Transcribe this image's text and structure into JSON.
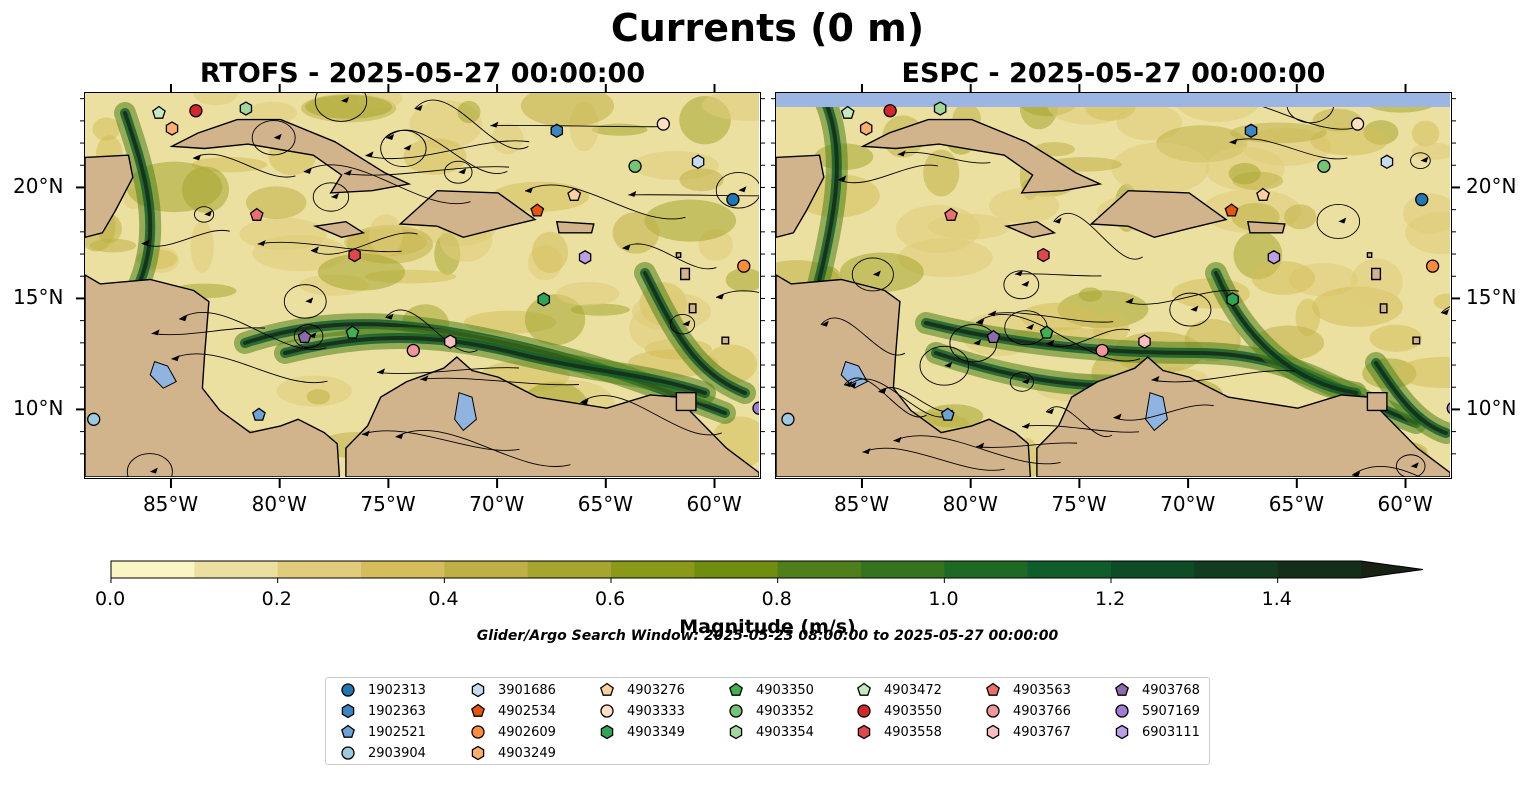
{
  "figure": {
    "suptitle": "Currents (0 m)",
    "panels": [
      {
        "title": "RTOFS - 2025-05-27 00:00:00"
      },
      {
        "title": "ESPC - 2025-05-27 00:00:00"
      }
    ],
    "lon_ticks": [
      "85°W",
      "80°W",
      "75°W",
      "70°W",
      "65°W",
      "60°W"
    ],
    "lat_ticks": [
      "20°N",
      "15°N",
      "10°N"
    ],
    "colorbar": {
      "label": "Magnitude (m/s)",
      "ticks": [
        "0.0",
        "0.2",
        "0.4",
        "0.6",
        "0.8",
        "1.0",
        "1.2",
        "1.4"
      ],
      "levels": [
        0.0,
        0.1,
        0.2,
        0.3,
        0.4,
        0.5,
        0.6,
        0.7,
        0.8,
        0.9,
        1.0,
        1.1,
        1.2,
        1.3,
        1.4,
        1.5
      ],
      "colors": [
        "#fbf5c4",
        "#ece0a0",
        "#e0cc7a",
        "#d4bd5a",
        "#bfb046",
        "#a6a530",
        "#8a9a18",
        "#6f8e10",
        "#4f7f1a",
        "#35741f",
        "#1e6a25",
        "#0f5d2a",
        "#0c4d25",
        "#123c20",
        "#152e1a",
        "#182214"
      ],
      "extend": "max"
    },
    "search_window": "Glider/Argo Search Window: 2025-05-23 08:00:00 to 2025-05-27 00:00:00",
    "land_color": "#d2b48c",
    "lake_color": "#8fb4e0",
    "espc_mask_color": "#9bb6e3"
  },
  "legend": {
    "items": [
      {
        "label": "1902313",
        "marker": "circle",
        "color": "#1f77b4"
      },
      {
        "label": "1902363",
        "marker": "hexagon",
        "color": "#3a85c4"
      },
      {
        "label": "1902521",
        "marker": "pentagon",
        "color": "#6ba3d6"
      },
      {
        "label": "2903904",
        "marker": "circle",
        "color": "#9ecae1"
      },
      {
        "label": "3901686",
        "marker": "hexagon",
        "color": "#c6dbef"
      },
      {
        "label": "4902534",
        "marker": "pentagon",
        "color": "#e6550d"
      },
      {
        "label": "4902609",
        "marker": "circle",
        "color": "#fd8d3c"
      },
      {
        "label": "4903249",
        "marker": "hexagon",
        "color": "#fdae6b"
      },
      {
        "label": "4903276",
        "marker": "pentagon",
        "color": "#fdd0a2"
      },
      {
        "label": "4903333",
        "marker": "circle",
        "color": "#fde0c5"
      },
      {
        "label": "4903349",
        "marker": "hexagon",
        "color": "#31a354"
      },
      {
        "label": "4903350",
        "marker": "pentagon",
        "color": "#41b050"
      },
      {
        "label": "4903352",
        "marker": "circle",
        "color": "#74c476"
      },
      {
        "label": "4903354",
        "marker": "hexagon",
        "color": "#a1d99b"
      },
      {
        "label": "4903472",
        "marker": "pentagon",
        "color": "#c7e9c0"
      },
      {
        "label": "4903550",
        "marker": "circle",
        "color": "#d62728"
      },
      {
        "label": "4903558",
        "marker": "hexagon",
        "color": "#e0474a"
      },
      {
        "label": "4903563",
        "marker": "pentagon",
        "color": "#ec6f70"
      },
      {
        "label": "4903766",
        "marker": "circle",
        "color": "#f0969a"
      },
      {
        "label": "4903767",
        "marker": "hexagon",
        "color": "#f7bfc0"
      },
      {
        "label": "4903768",
        "marker": "pentagon",
        "color": "#8c6bb1"
      },
      {
        "label": "5907169",
        "marker": "circle",
        "color": "#9e7fcf"
      },
      {
        "label": "6903111",
        "marker": "hexagon",
        "color": "#bca0e6"
      }
    ]
  },
  "markers": [
    {
      "id": "1902313",
      "lon": -59.2,
      "lat": 19.5
    },
    {
      "id": "1902363",
      "lon": -67.3,
      "lat": 22.6
    },
    {
      "id": "1902521",
      "lon": -81.0,
      "lat": 9.8
    },
    {
      "id": "2903904",
      "lon": -88.6,
      "lat": 9.6
    },
    {
      "id": "3901686",
      "lon": -60.8,
      "lat": 21.2
    },
    {
      "id": "4902534",
      "lon": -68.2,
      "lat": 19.0
    },
    {
      "id": "4902609",
      "lon": -58.7,
      "lat": 16.5
    },
    {
      "id": "4903249",
      "lon": -85.0,
      "lat": 22.7
    },
    {
      "id": "4903276",
      "lon": -66.5,
      "lat": 19.7
    },
    {
      "id": "4903333",
      "lon": -62.4,
      "lat": 22.9
    },
    {
      "id": "4903349",
      "lon": -67.9,
      "lat": 15.0
    },
    {
      "id": "4903350",
      "lon": -76.7,
      "lat": 13.5
    },
    {
      "id": "4903352",
      "lon": -63.7,
      "lat": 21.0
    },
    {
      "id": "4903354",
      "lon": -81.6,
      "lat": 23.6
    },
    {
      "id": "4903472",
      "lon": -85.6,
      "lat": 23.4
    },
    {
      "id": "4903550",
      "lon": -83.9,
      "lat": 23.5
    },
    {
      "id": "4903558",
      "lon": -76.6,
      "lat": 17.0
    },
    {
      "id": "4903563",
      "lon": -81.1,
      "lat": 18.8
    },
    {
      "id": "4903766",
      "lon": -73.9,
      "lat": 12.7
    },
    {
      "id": "4903767",
      "lon": -72.2,
      "lat": 13.1
    },
    {
      "id": "4903768",
      "lon": -78.9,
      "lat": 13.3
    },
    {
      "id": "5907169",
      "lon": -58.0,
      "lat": 10.1
    },
    {
      "id": "6903111",
      "lon": -66.0,
      "lat": 16.9
    }
  ]
}
